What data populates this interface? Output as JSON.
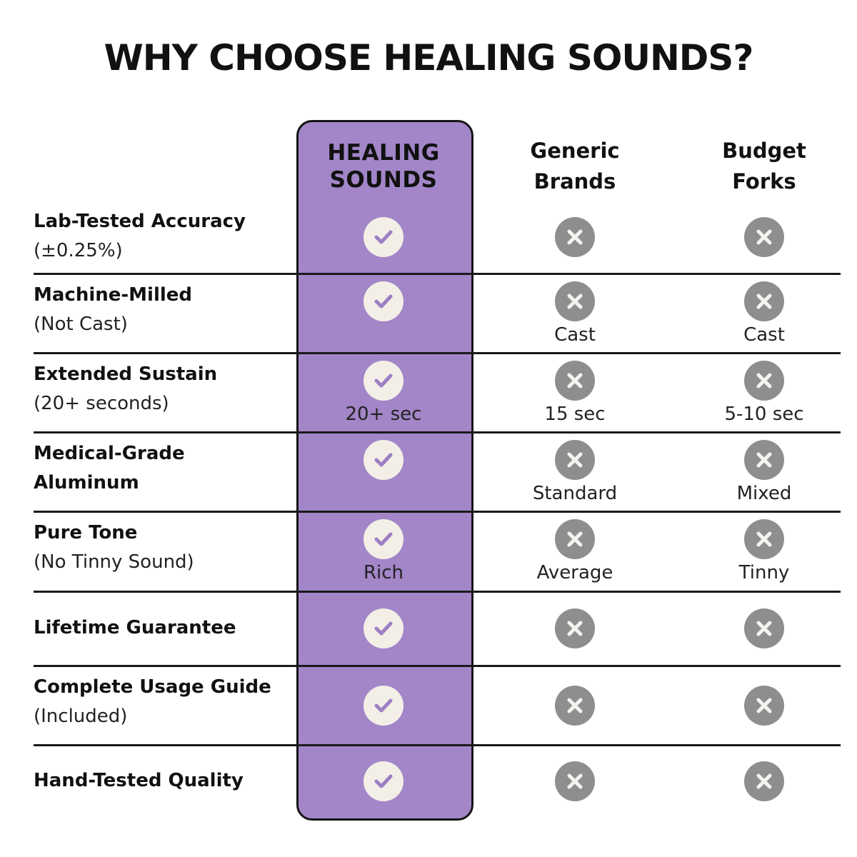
{
  "title": "WHY CHOOSE HEALING SOUNDS?",
  "colors": {
    "highlight": "#a286c8",
    "check_bg": "#f3efe7",
    "check_mark": "#9d7fc4",
    "x_bg": "#8e8e8e"
  },
  "columns": [
    {
      "label": "HEALING\nSOUNDS",
      "highlighted": true
    },
    {
      "label": "Generic\nBrands"
    },
    {
      "label": "Budget\nForks"
    }
  ],
  "rows": [
    {
      "feature": "Lab-Tested Accuracy",
      "sub": "(±0.25%)",
      "cells": [
        {
          "icon": "check-icon",
          "note": ""
        },
        {
          "icon": "x-icon",
          "note": ""
        },
        {
          "icon": "x-icon",
          "note": ""
        }
      ]
    },
    {
      "feature": "Machine-Milled",
      "sub": "(Not Cast)",
      "cells": [
        {
          "icon": "check-icon",
          "note": ""
        },
        {
          "icon": "x-icon",
          "note": "Cast"
        },
        {
          "icon": "x-icon",
          "note": "Cast"
        }
      ]
    },
    {
      "feature": "Extended Sustain",
      "sub": "(20+ seconds)",
      "cells": [
        {
          "icon": "check-icon",
          "note": "20+ sec"
        },
        {
          "icon": "x-icon",
          "note": "15 sec"
        },
        {
          "icon": "x-icon",
          "note": "5-10 sec"
        }
      ]
    },
    {
      "feature": "Medical-Grade\nAluminum",
      "sub": "",
      "cells": [
        {
          "icon": "check-icon",
          "note": ""
        },
        {
          "icon": "x-icon",
          "note": "Standard"
        },
        {
          "icon": "x-icon",
          "note": "Mixed"
        }
      ]
    },
    {
      "feature": "Pure Tone",
      "sub": "(No Tinny Sound)",
      "cells": [
        {
          "icon": "check-icon",
          "note": "Rich"
        },
        {
          "icon": "x-icon",
          "note": "Average"
        },
        {
          "icon": "x-icon",
          "note": "Tinny"
        }
      ]
    },
    {
      "feature": "Lifetime Guarantee",
      "sub": "",
      "cells": [
        {
          "icon": "check-icon",
          "note": ""
        },
        {
          "icon": "x-icon",
          "note": ""
        },
        {
          "icon": "x-icon",
          "note": ""
        }
      ]
    },
    {
      "feature": "Complete Usage Guide",
      "sub": "(Included)",
      "cells": [
        {
          "icon": "check-icon",
          "note": ""
        },
        {
          "icon": "x-icon",
          "note": ""
        },
        {
          "icon": "x-icon",
          "note": ""
        }
      ]
    },
    {
      "feature": "Hand-Tested Quality",
      "sub": "",
      "cells": [
        {
          "icon": "check-icon",
          "note": ""
        },
        {
          "icon": "x-icon",
          "note": ""
        },
        {
          "icon": "x-icon",
          "note": ""
        }
      ]
    }
  ]
}
